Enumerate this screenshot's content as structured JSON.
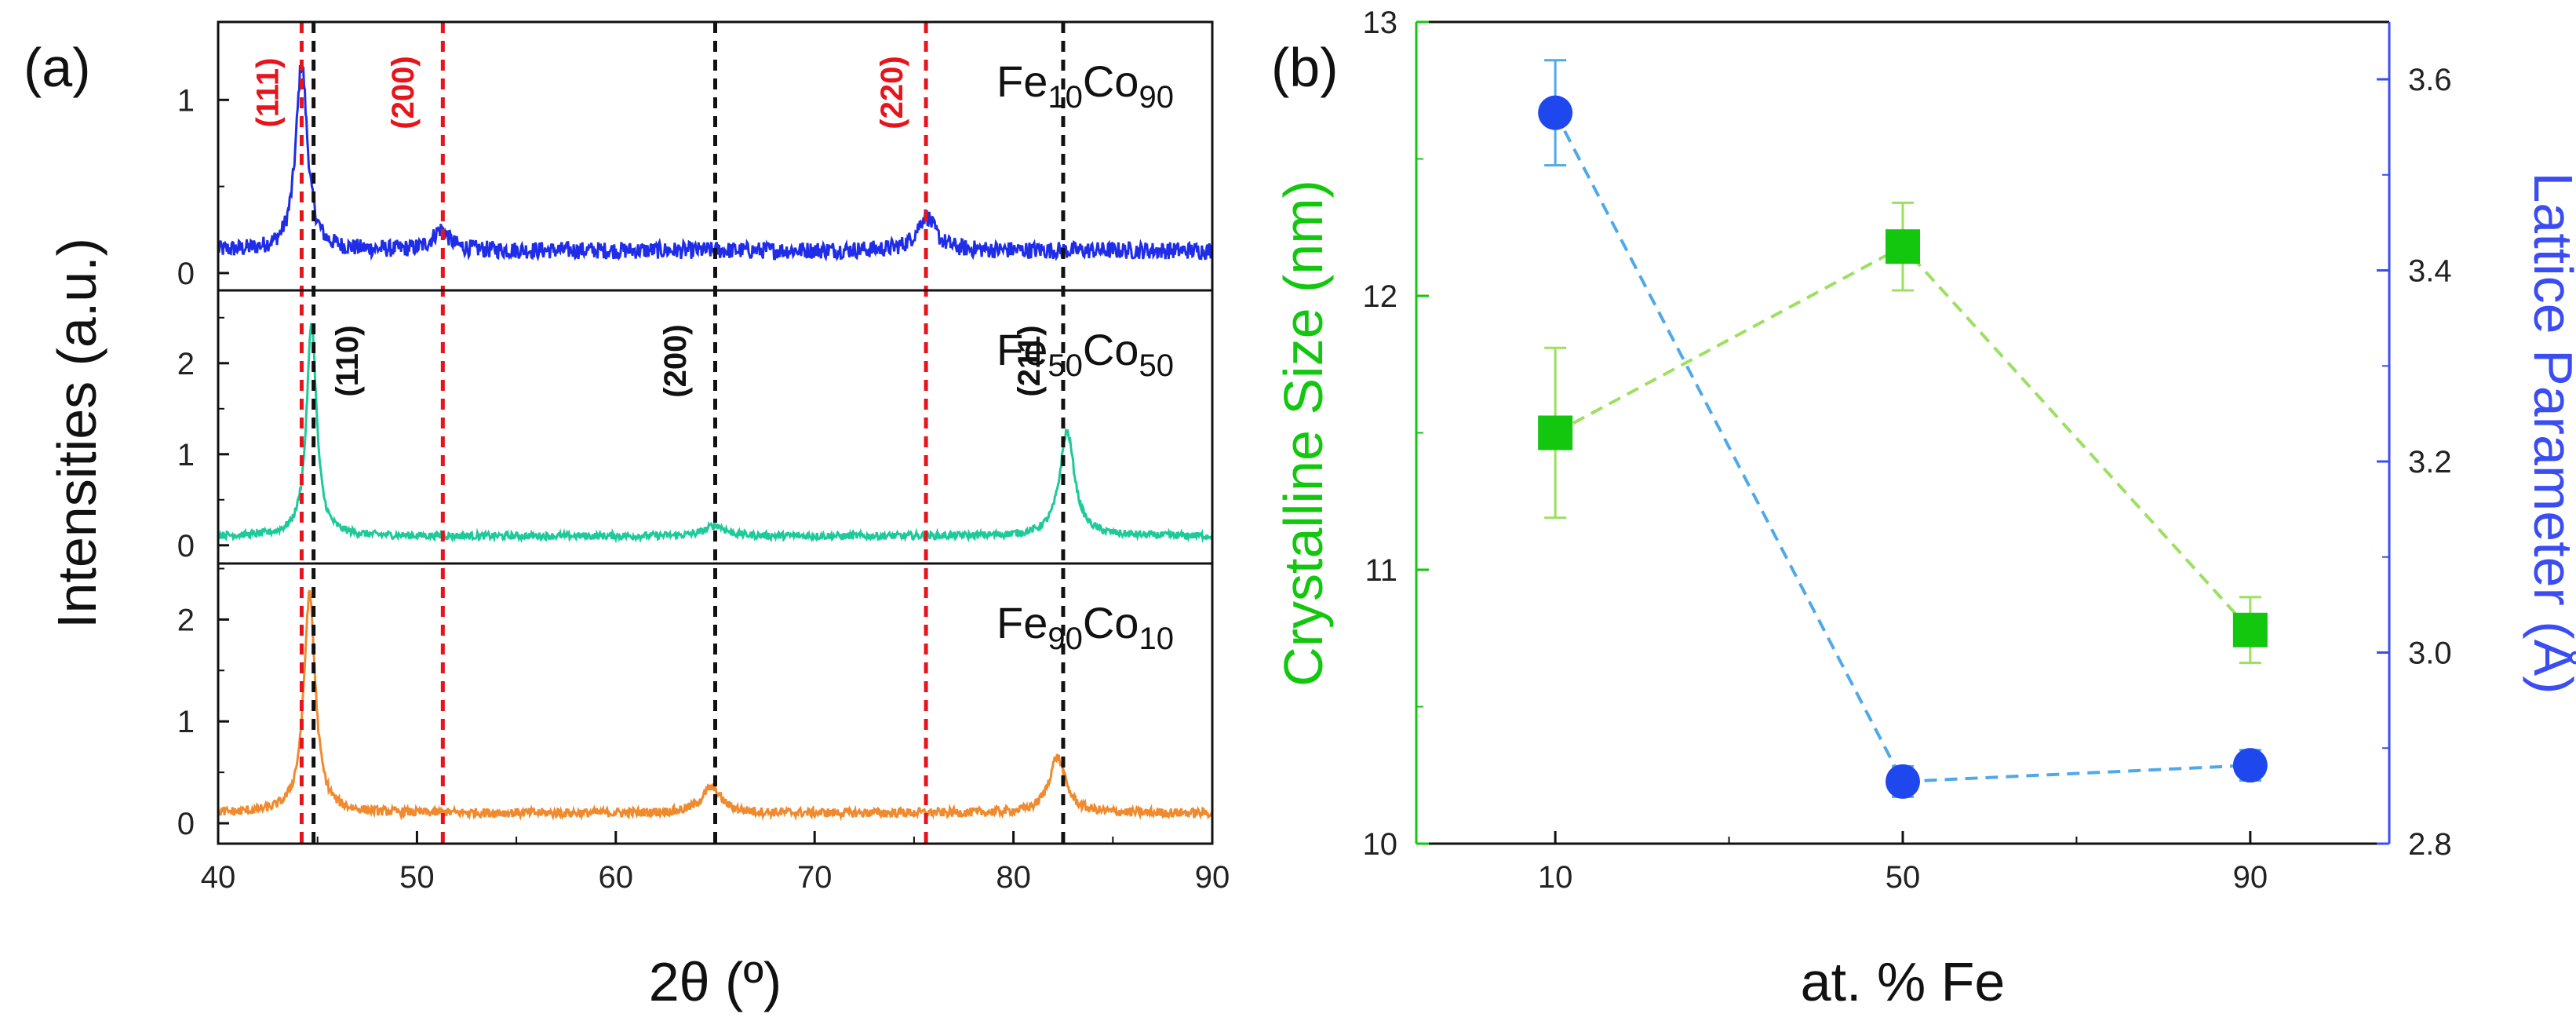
{
  "chart_data": [
    {
      "panel": "(a)",
      "type": "line",
      "xlabel": "2θ (º)",
      "ylabel": "Intensities (a.u.)",
      "xlim": [
        40,
        90
      ],
      "xticks": [
        40,
        50,
        60,
        70,
        80,
        90
      ],
      "reference_lines": [
        {
          "x": 44.2,
          "color": "#e8141c",
          "style": "dashed"
        },
        {
          "x": 51.3,
          "color": "#e8141c",
          "style": "dashed"
        },
        {
          "x": 75.6,
          "color": "#e8141c",
          "style": "dashed"
        },
        {
          "x": 44.8,
          "color": "#111111",
          "style": "dashed"
        },
        {
          "x": 65.0,
          "color": "#111111",
          "style": "dashed"
        },
        {
          "x": 82.5,
          "color": "#111111",
          "style": "dashed"
        }
      ],
      "annotations": [
        {
          "text": "(111)",
          "x": 42.6,
          "color": "#e8141c",
          "subplot": 0
        },
        {
          "text": "(200)",
          "x": 49.4,
          "color": "#e8141c",
          "subplot": 0
        },
        {
          "text": "(220)",
          "x": 74.0,
          "color": "#e8141c",
          "subplot": 0
        },
        {
          "text": "(110)",
          "x": 46.6,
          "color": "#111111",
          "subplot": 1
        },
        {
          "text": "(200)",
          "x": 63.1,
          "color": "#111111",
          "subplot": 1
        },
        {
          "text": "(211)",
          "x": 80.9,
          "color": "#111111",
          "subplot": 1
        }
      ],
      "series": [
        {
          "name": "Fe10Co90",
          "base": "Fe",
          "sub1": "10",
          "mid": "Co",
          "sub2": "90",
          "color": "#1f2de8",
          "ylim": [
            -0.1,
            1.45
          ],
          "yticks": [
            0,
            1
          ],
          "baseline": 0.13,
          "noise": 0.05,
          "peaks": [
            [
              44.2,
              1.08,
              0.35
            ],
            [
              51.2,
              0.12,
              0.5
            ],
            [
              75.6,
              0.2,
              0.55
            ]
          ]
        },
        {
          "name": "Fe50Co50",
          "base": "Fe",
          "sub1": "50",
          "mid": "Co",
          "sub2": "50",
          "color": "#1ec99a",
          "ylim": [
            -0.2,
            2.8
          ],
          "yticks": [
            0,
            1,
            2
          ],
          "baseline": 0.1,
          "noise": 0.04,
          "peaks": [
            [
              44.7,
              2.35,
              0.3
            ],
            [
              65.0,
              0.12,
              0.6
            ],
            [
              82.7,
              1.15,
              0.45
            ]
          ]
        },
        {
          "name": "Fe90Co10",
          "base": "Fe",
          "sub1": "90",
          "mid": "Co",
          "sub2": "10",
          "color": "#f08a2e",
          "ylim": [
            -0.2,
            2.55
          ],
          "yticks": [
            0,
            1,
            2
          ],
          "baseline": 0.1,
          "noise": 0.045,
          "peaks": [
            [
              44.6,
              2.15,
              0.35
            ],
            [
              64.8,
              0.25,
              0.6
            ],
            [
              82.2,
              0.55,
              0.5
            ]
          ]
        }
      ]
    },
    {
      "panel": "(b)",
      "type": "scatter",
      "xlabel": "at. % Fe",
      "categories": [
        "10",
        "50",
        "90"
      ],
      "x": [
        10,
        50,
        90
      ],
      "xlim": [
        -6,
        106
      ],
      "series": [
        {
          "name": "Crystalline Size",
          "axis": "left",
          "marker": "square",
          "color": "#13c70f",
          "line_color": "#9be060",
          "values": [
            11.5,
            12.18,
            10.78
          ],
          "errors": [
            0.31,
            0.16,
            0.12
          ]
        },
        {
          "name": "Lattice Parameter",
          "axis": "right",
          "marker": "circle",
          "color": "#1f47ee",
          "line_color": "#4fa9e8",
          "values": [
            3.565,
            2.865,
            2.882
          ],
          "errors": [
            0.055,
            0.016,
            0.016
          ]
        }
      ],
      "y_left": {
        "label": "Crystalline Size (nm)",
        "range": [
          10,
          13
        ],
        "ticks": [
          10,
          11,
          12,
          13
        ],
        "color": "#13c70f"
      },
      "y_right": {
        "label": "Lattice Parameter (Å)",
        "range": [
          2.8,
          3.66
        ],
        "ticks": [
          "2.8",
          "3.0",
          "3.2",
          "3.4",
          "3.6"
        ],
        "color": "#3b4df2"
      }
    }
  ]
}
